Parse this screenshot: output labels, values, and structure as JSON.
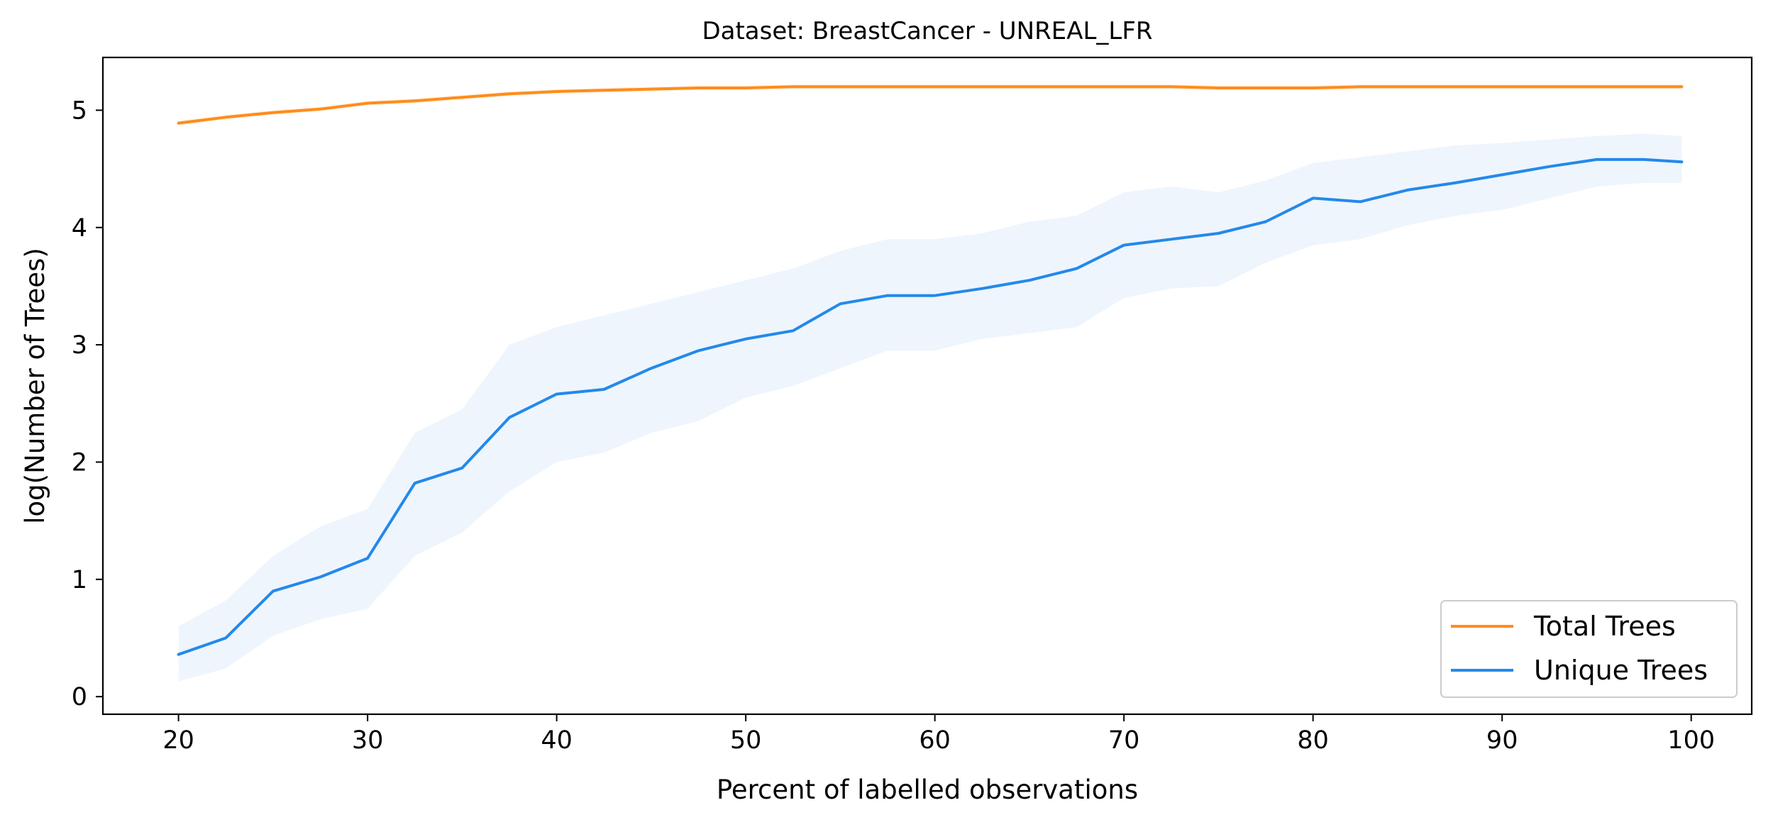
{
  "chart_data": {
    "type": "line",
    "title": "Dataset: BreastCancer - UNREAL_LFR",
    "xlabel": "Percent of labelled observations",
    "ylabel": "log(Number of Trees)",
    "xlim": [
      16,
      103.2
    ],
    "ylim": [
      -0.15,
      5.45
    ],
    "xticks": [
      20,
      30,
      40,
      50,
      60,
      70,
      80,
      90,
      100
    ],
    "yticks": [
      0,
      1,
      2,
      3,
      4,
      5
    ],
    "grid": false,
    "legend_position": "lower right",
    "x": [
      20,
      22.5,
      25,
      27.5,
      30,
      32.5,
      35,
      37.5,
      40,
      42.5,
      45,
      47.5,
      50,
      52.5,
      55,
      57.5,
      60,
      62.5,
      65,
      67.5,
      70,
      72.5,
      75,
      77.5,
      80,
      82.5,
      85,
      87.5,
      90,
      92.5,
      95,
      97.5,
      99.5
    ],
    "series": [
      {
        "name": "Total Trees",
        "color": "#ff8c1a",
        "band": 0.02,
        "values": [
          4.89,
          4.94,
          4.98,
          5.01,
          5.06,
          5.08,
          5.11,
          5.14,
          5.16,
          5.17,
          5.18,
          5.19,
          5.19,
          5.2,
          5.2,
          5.2,
          5.2,
          5.2,
          5.2,
          5.2,
          5.2,
          5.2,
          5.19,
          5.19,
          5.19,
          5.2,
          5.2,
          5.2,
          5.2,
          5.2,
          5.2,
          5.2,
          5.2
        ]
      },
      {
        "name": "Unique Trees",
        "color": "#2389ea",
        "band_color": "#eef5fd",
        "lower": [
          0.13,
          0.24,
          0.52,
          0.66,
          0.75,
          1.2,
          1.4,
          1.75,
          2.0,
          2.08,
          2.25,
          2.35,
          2.55,
          2.65,
          2.8,
          2.95,
          2.95,
          3.05,
          3.1,
          3.15,
          3.4,
          3.48,
          3.5,
          3.7,
          3.85,
          3.9,
          4.02,
          4.1,
          4.15,
          4.25,
          4.35,
          4.38,
          4.38
        ],
        "upper": [
          0.6,
          0.82,
          1.2,
          1.45,
          1.6,
          2.25,
          2.45,
          3.0,
          3.15,
          3.25,
          3.35,
          3.45,
          3.55,
          3.65,
          3.8,
          3.9,
          3.9,
          3.95,
          4.05,
          4.1,
          4.3,
          4.35,
          4.3,
          4.4,
          4.55,
          4.6,
          4.65,
          4.7,
          4.72,
          4.75,
          4.78,
          4.8,
          4.78
        ],
        "values": [
          0.36,
          0.5,
          0.9,
          1.02,
          1.18,
          1.82,
          1.95,
          2.38,
          2.58,
          2.62,
          2.8,
          2.95,
          3.05,
          3.12,
          3.35,
          3.42,
          3.42,
          3.48,
          3.55,
          3.65,
          3.85,
          3.9,
          3.95,
          4.05,
          4.25,
          4.22,
          4.32,
          4.38,
          4.45,
          4.52,
          4.58,
          4.58,
          4.56
        ]
      }
    ]
  }
}
